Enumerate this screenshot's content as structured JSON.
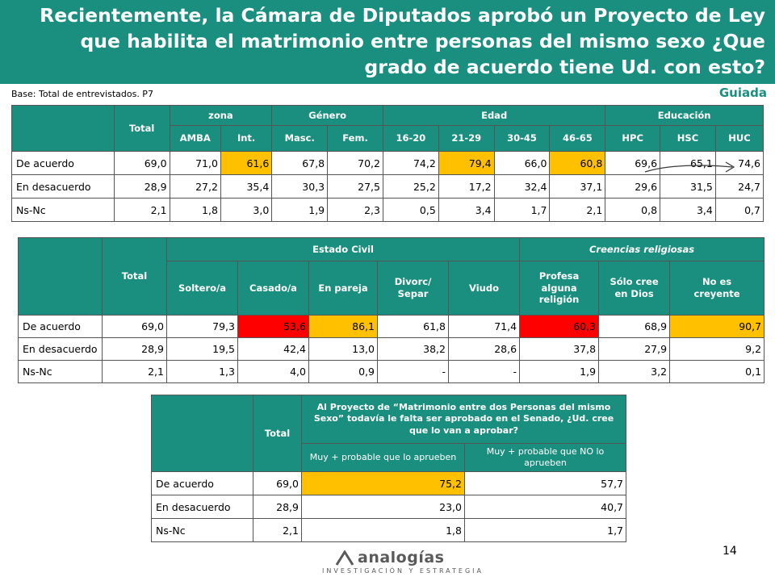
{
  "title": "Recientemente, la Cámara de Diputados aprobó un Proyecto de Ley que habilita el matrimonio entre personas del mismo sexo ¿Que grado de acuerdo tiene Ud. con esto?",
  "base_note": "Base: Total de  entrevistados. P7",
  "guiada": "Guiada",
  "page_number": "14",
  "logo": {
    "word": "analogías",
    "sub": "INVESTIGACIÓN Y ESTRATEGIA"
  },
  "colors": {
    "header": "#1a8f7f",
    "highlight_yellow": "#ffc000",
    "highlight_red": "#ff0000"
  },
  "table1": {
    "total": "Total",
    "groups": [
      "zona",
      "Género",
      "Edad",
      "Educación"
    ],
    "subheaders": [
      "AMBA",
      "Int.",
      "Masc.",
      "Fem.",
      "16-20",
      "21-29",
      "30-45",
      "46-65",
      "HPC",
      "HSC",
      "HUC"
    ],
    "rows": [
      {
        "label": "De acuerdo",
        "values": [
          "69,0",
          "71,0",
          "61,6",
          "67,8",
          "70,2",
          "74,2",
          "79,4",
          "66,0",
          "60,8",
          "69,6",
          "65,1",
          "74,6"
        ]
      },
      {
        "label": "En desacuerdo",
        "values": [
          "28,9",
          "27,2",
          "35,4",
          "30,3",
          "27,5",
          "25,2",
          "17,2",
          "32,4",
          "37,1",
          "29,6",
          "31,5",
          "24,7"
        ]
      },
      {
        "label": "Ns-Nc",
        "values": [
          "2,1",
          "1,8",
          "3,0",
          "1,9",
          "2,3",
          "0,5",
          "3,4",
          "1,7",
          "2,1",
          "0,8",
          "3,4",
          "0,7"
        ]
      }
    ]
  },
  "table2": {
    "total": "Total",
    "groups": [
      "Estado Civil",
      "Creencias religiosas"
    ],
    "subheaders": [
      "Soltero/a",
      "Casado/a",
      "En pareja",
      "Divorc/ Separ",
      "Viudo",
      "Profesa alguna religión",
      "Sólo cree en Dios",
      "No es creyente"
    ],
    "rows": [
      {
        "label": "De acuerdo",
        "values": [
          "69,0",
          "79,3",
          "53,6",
          "86,1",
          "61,8",
          "71,4",
          "60,3",
          "68,9",
          "90,7"
        ]
      },
      {
        "label": "En desacuerdo",
        "values": [
          "28,9",
          "19,5",
          "42,4",
          "13,0",
          "38,2",
          "28,6",
          "37,8",
          "27,9",
          "9,2"
        ]
      },
      {
        "label": "Ns-Nc",
        "values": [
          "2,1",
          "1,3",
          "4,0",
          "0,9",
          "-",
          "-",
          "1,9",
          "3,2",
          "0,1"
        ]
      }
    ]
  },
  "table3": {
    "total": "Total",
    "question": "Al Proyecto de “Matrimonio entre dos Personas del mismo Sexo” todavía le falta ser aprobado en el Senado, ¿Ud. cree que lo van a aprobar?",
    "subheaders": [
      "Muy + probable que lo aprueben",
      "Muy + probable que NO lo aprueben"
    ],
    "rows": [
      {
        "label": "De acuerdo",
        "values": [
          "69,0",
          "75,2",
          "57,7"
        ]
      },
      {
        "label": "En desacuerdo",
        "values": [
          "28,9",
          "23,0",
          "40,7"
        ]
      },
      {
        "label": "Ns-Nc",
        "values": [
          "2,1",
          "1,8",
          "1,7"
        ]
      }
    ]
  }
}
